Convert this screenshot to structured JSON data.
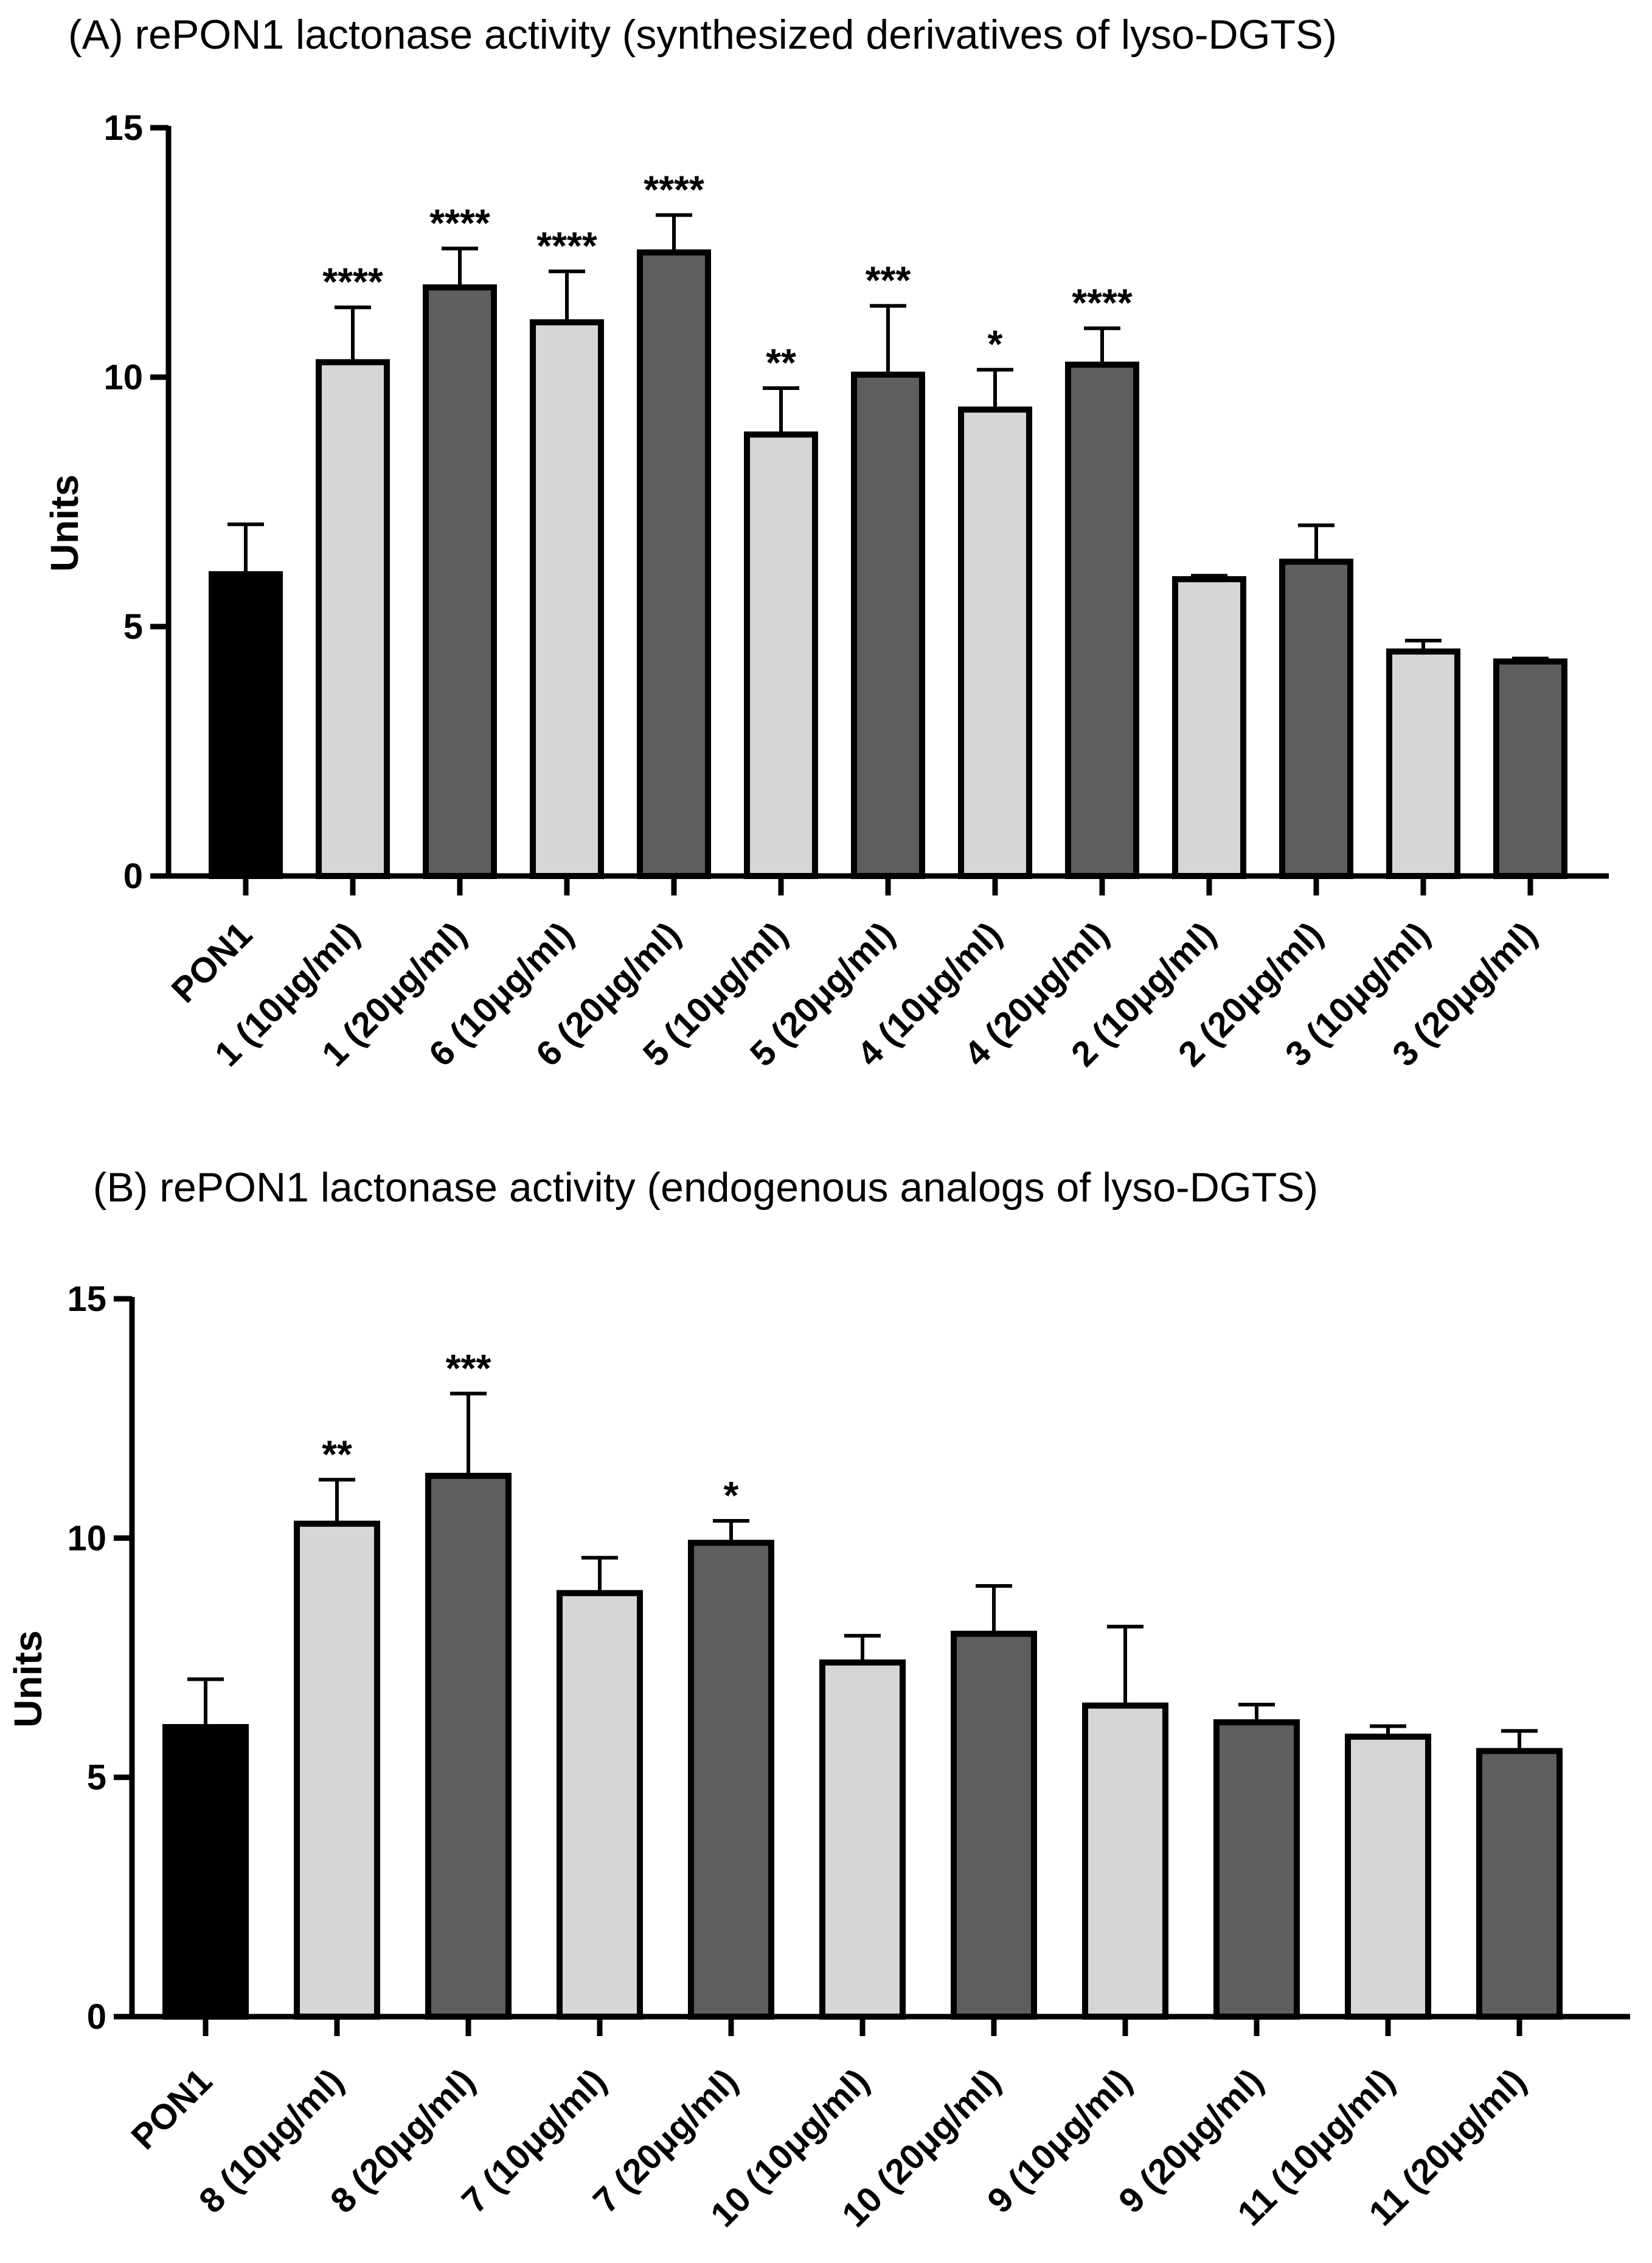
{
  "colors": {
    "control": "#000000",
    "light": "#d6d6d6",
    "dark": "#5e5e5e",
    "outline": "#000000"
  },
  "chart_data": [
    {
      "type": "bar",
      "title": "(A) rePON1 lactonase activity (synthesized derivatives of lyso-DGTS)",
      "xlabel": "",
      "ylabel": "Units",
      "ylim": [
        0,
        15
      ],
      "yticks": [
        0,
        5,
        10,
        15
      ],
      "categories": [
        "PON1",
        "1 (10μg/ml)",
        "1 (20μg/ml)",
        "6 (10μg/ml)",
        "6 (20μg/ml)",
        "5 (10μg/ml)",
        "5 (20μg/ml)",
        "4 (10μg/ml)",
        "4 (20μg/ml)",
        "2 (10μg/ml)",
        "2 (20μg/ml)",
        "3 (10μg/ml)",
        "3 (20μg/ml)"
      ],
      "values": [
        6.05,
        10.3,
        11.8,
        11.1,
        12.5,
        8.85,
        10.05,
        9.35,
        10.25,
        5.95,
        6.3,
        4.5,
        4.3
      ],
      "errors": [
        1.0,
        1.1,
        0.78,
        1.02,
        0.75,
        0.93,
        1.38,
        0.8,
        0.73,
        0.07,
        0.73,
        0.22,
        0.06
      ],
      "fill": [
        "control",
        "light",
        "dark",
        "light",
        "dark",
        "light",
        "dark",
        "light",
        "dark",
        "light",
        "dark",
        "light",
        "dark"
      ],
      "significance": [
        "",
        "****",
        "****",
        "****",
        "****",
        "**",
        "***",
        "*",
        "****",
        "",
        "",
        "",
        ""
      ]
    },
    {
      "type": "bar",
      "title": "(B)  rePON1 lactonase activity (endogenous analogs of lyso-DGTS)",
      "xlabel": "",
      "ylabel": "Units",
      "ylim": [
        0,
        15
      ],
      "yticks": [
        0,
        5,
        10,
        15
      ],
      "categories": [
        "PON1",
        "8 (10μg/ml)",
        "8 (20μg/ml)",
        "7 (10μg/ml)",
        "7 (20μg/ml)",
        "10 (10μg/ml)",
        "10 (20μg/ml)",
        "9 (10μg/ml)",
        "9 (20μg/ml)",
        "11 (10μg/ml)",
        "11 (20μg/ml)"
      ],
      "values": [
        6.05,
        10.3,
        11.3,
        8.85,
        9.9,
        7.4,
        8.0,
        6.5,
        6.15,
        5.85,
        5.55
      ],
      "errors": [
        1.0,
        0.92,
        1.72,
        0.74,
        0.46,
        0.56,
        1.0,
        1.65,
        0.37,
        0.22,
        0.42
      ],
      "fill": [
        "control",
        "light",
        "dark",
        "light",
        "dark",
        "light",
        "dark",
        "light",
        "dark",
        "light",
        "dark"
      ],
      "significance": [
        "",
        "**",
        "***",
        "",
        "*",
        "",
        "",
        "",
        "",
        "",
        ""
      ]
    }
  ]
}
